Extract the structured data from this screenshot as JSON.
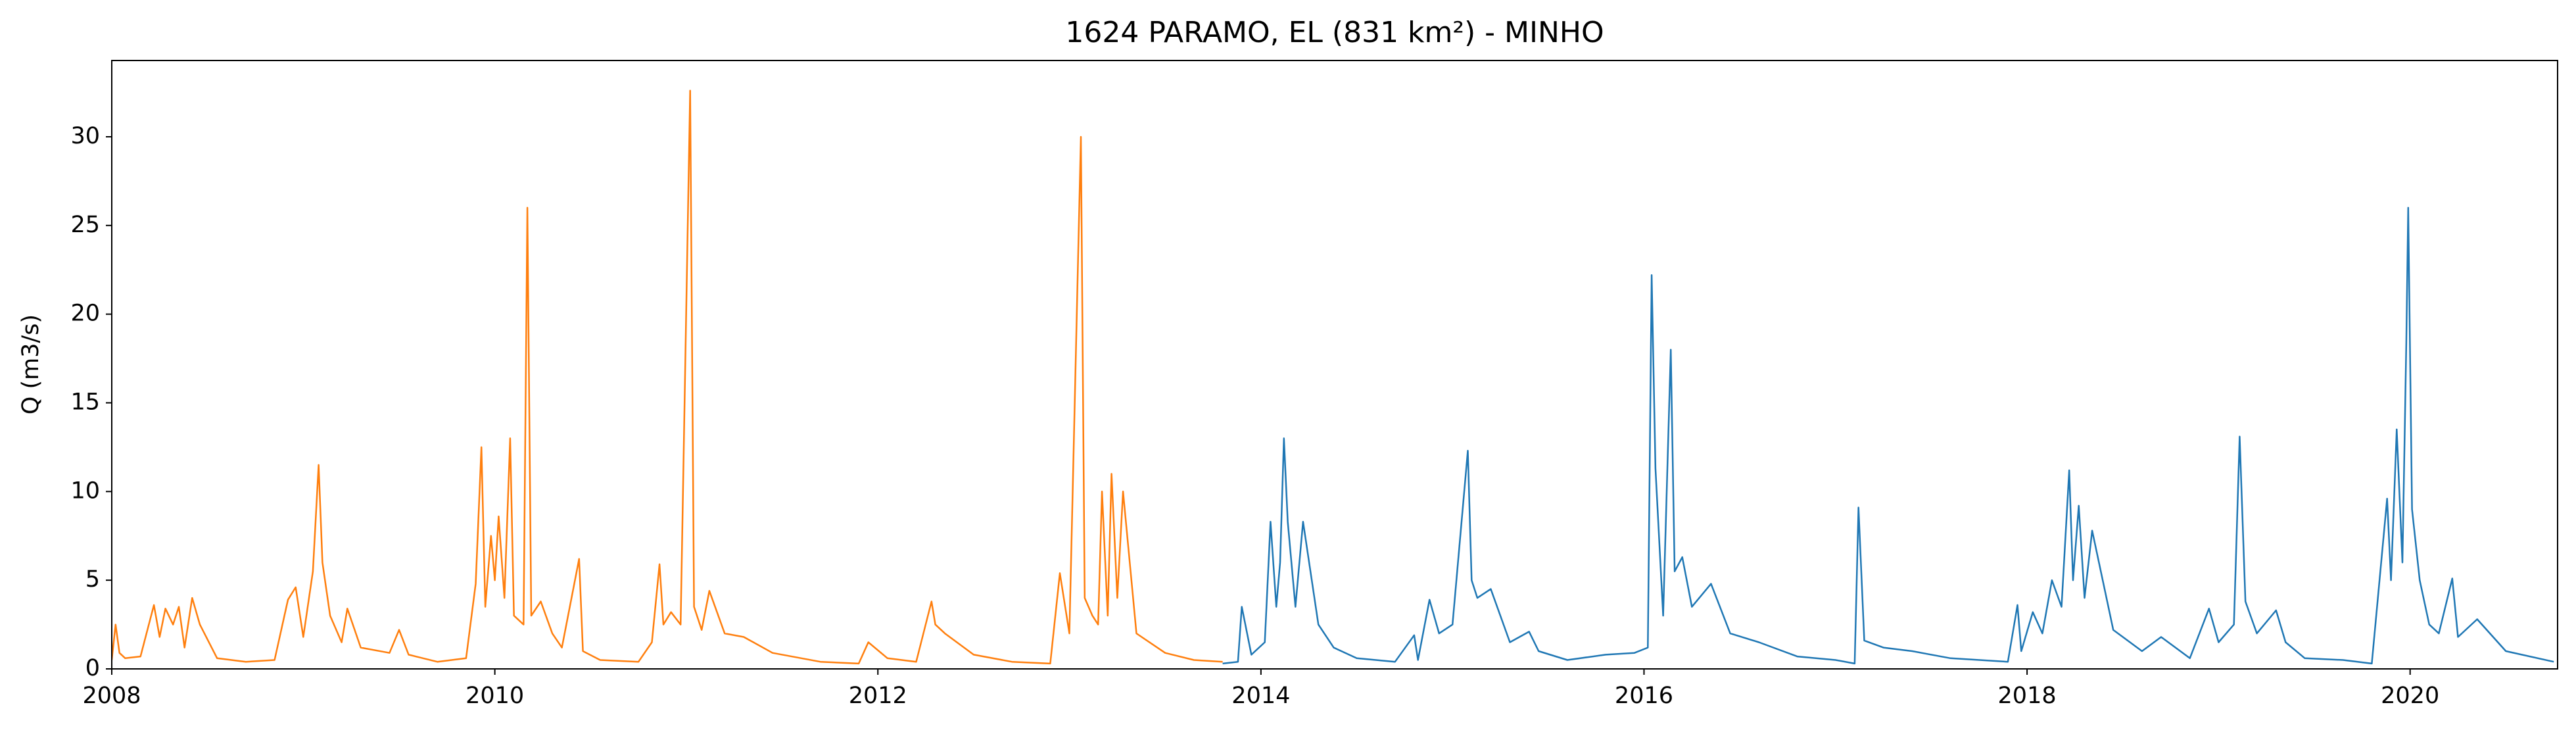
{
  "chart_data": {
    "type": "line",
    "title": "1624 PARAMO, EL (831 km²) - MINHO",
    "y_label": "Q (m3/s)",
    "xlim": [
      2008,
      2020.77
    ],
    "xticks": [
      2008,
      2010,
      2012,
      2014,
      2016,
      2018,
      2020
    ],
    "ylim": [
      0,
      34.3
    ],
    "yticks": [
      0,
      5,
      10,
      15,
      20,
      25,
      30
    ],
    "grid": false,
    "series": [
      {
        "color": "#ff7f0e",
        "x": [
          2008.0,
          2008.02,
          2008.04,
          2008.07,
          2008.15,
          2008.22,
          2008.25,
          2008.28,
          2008.32,
          2008.35,
          2008.38,
          2008.42,
          2008.46,
          2008.55,
          2008.7,
          2008.85,
          2008.92,
          2008.96,
          2009.0,
          2009.05,
          2009.08,
          2009.1,
          2009.14,
          2009.2,
          2009.23,
          2009.3,
          2009.45,
          2009.5,
          2009.55,
          2009.7,
          2009.85,
          2009.9,
          2009.93,
          2009.95,
          2009.98,
          2010.0,
          2010.02,
          2010.05,
          2010.08,
          2010.1,
          2010.15,
          2010.17,
          2010.19,
          2010.24,
          2010.3,
          2010.35,
          2010.44,
          2010.46,
          2010.55,
          2010.75,
          2010.82,
          2010.86,
          2010.88,
          2010.92,
          2010.97,
          2011.02,
          2011.04,
          2011.08,
          2011.12,
          2011.2,
          2011.3,
          2011.45,
          2011.7,
          2011.9,
          2011.95,
          2012.05,
          2012.2,
          2012.28,
          2012.3,
          2012.35,
          2012.5,
          2012.7,
          2012.9,
          2012.95,
          2013.0,
          2013.06,
          2013.08,
          2013.12,
          2013.15,
          2013.17,
          2013.2,
          2013.22,
          2013.25,
          2013.28,
          2013.35,
          2013.5,
          2013.65,
          2013.8
        ],
        "values": [
          0.5,
          2.5,
          0.9,
          0.6,
          0.7,
          3.6,
          1.8,
          3.4,
          2.5,
          3.5,
          1.2,
          4.0,
          2.5,
          0.6,
          0.4,
          0.5,
          3.9,
          4.6,
          1.8,
          5.5,
          11.5,
          6.0,
          3.0,
          1.5,
          3.4,
          1.2,
          0.9,
          2.2,
          0.8,
          0.4,
          0.6,
          4.8,
          12.5,
          3.5,
          7.5,
          5.0,
          8.6,
          4.0,
          13.0,
          3.0,
          2.5,
          26.0,
          3.0,
          3.8,
          2.0,
          1.2,
          6.2,
          1.0,
          0.5,
          0.4,
          1.5,
          5.9,
          2.5,
          3.2,
          2.5,
          32.6,
          3.5,
          2.2,
          4.4,
          2.0,
          1.8,
          0.9,
          0.4,
          0.3,
          1.5,
          0.6,
          0.4,
          3.8,
          2.5,
          2.0,
          0.8,
          0.4,
          0.3,
          5.4,
          2.0,
          30.0,
          4.0,
          3.0,
          2.5,
          10.0,
          3.0,
          11.0,
          4.0,
          10.0,
          2.0,
          0.9,
          0.5,
          0.4
        ]
      },
      {
        "color": "#1f77b4",
        "x": [
          2013.8,
          2013.88,
          2013.9,
          2013.95,
          2014.02,
          2014.05,
          2014.08,
          2014.1,
          2014.12,
          2014.14,
          2014.18,
          2014.22,
          2014.3,
          2014.38,
          2014.5,
          2014.7,
          2014.8,
          2014.82,
          2014.88,
          2014.93,
          2015.0,
          2015.08,
          2015.1,
          2015.13,
          2015.2,
          2015.3,
          2015.4,
          2015.45,
          2015.6,
          2015.8,
          2015.95,
          2016.02,
          2016.04,
          2016.06,
          2016.1,
          2016.14,
          2016.16,
          2016.2,
          2016.25,
          2016.35,
          2016.45,
          2016.6,
          2016.8,
          2017.0,
          2017.1,
          2017.12,
          2017.15,
          2017.25,
          2017.4,
          2017.6,
          2017.9,
          2017.95,
          2017.97,
          2018.03,
          2018.08,
          2018.13,
          2018.18,
          2018.22,
          2018.24,
          2018.27,
          2018.3,
          2018.34,
          2018.45,
          2018.6,
          2018.7,
          2018.85,
          2018.95,
          2019.0,
          2019.08,
          2019.11,
          2019.14,
          2019.2,
          2019.3,
          2019.35,
          2019.45,
          2019.65,
          2019.8,
          2019.88,
          2019.9,
          2019.93,
          2019.96,
          2019.98,
          2019.99,
          2020.01,
          2020.05,
          2020.1,
          2020.15,
          2020.22,
          2020.25,
          2020.35,
          2020.5,
          2020.75
        ],
        "values": [
          0.3,
          0.4,
          3.5,
          0.8,
          1.5,
          8.3,
          3.5,
          6.0,
          13.0,
          8.3,
          3.5,
          8.3,
          2.5,
          1.2,
          0.6,
          0.4,
          1.9,
          0.5,
          3.9,
          2.0,
          2.5,
          12.3,
          5.0,
          4.0,
          4.5,
          1.5,
          2.1,
          1.0,
          0.5,
          0.8,
          0.9,
          1.2,
          22.2,
          11.3,
          3.0,
          18.0,
          5.5,
          6.3,
          3.5,
          4.8,
          2.0,
          1.5,
          0.7,
          0.5,
          0.3,
          9.1,
          1.6,
          1.2,
          1.0,
          0.6,
          0.4,
          3.6,
          1.0,
          3.2,
          2.0,
          5.0,
          3.5,
          11.2,
          5.0,
          9.2,
          4.0,
          7.8,
          2.2,
          1.0,
          1.8,
          0.6,
          3.4,
          1.5,
          2.5,
          13.1,
          3.8,
          2.0,
          3.3,
          1.5,
          0.6,
          0.5,
          0.3,
          9.6,
          5.0,
          13.5,
          6.0,
          18.4,
          26.0,
          9.0,
          5.0,
          2.5,
          2.0,
          5.1,
          1.8,
          2.8,
          1.0,
          0.4
        ]
      }
    ]
  }
}
